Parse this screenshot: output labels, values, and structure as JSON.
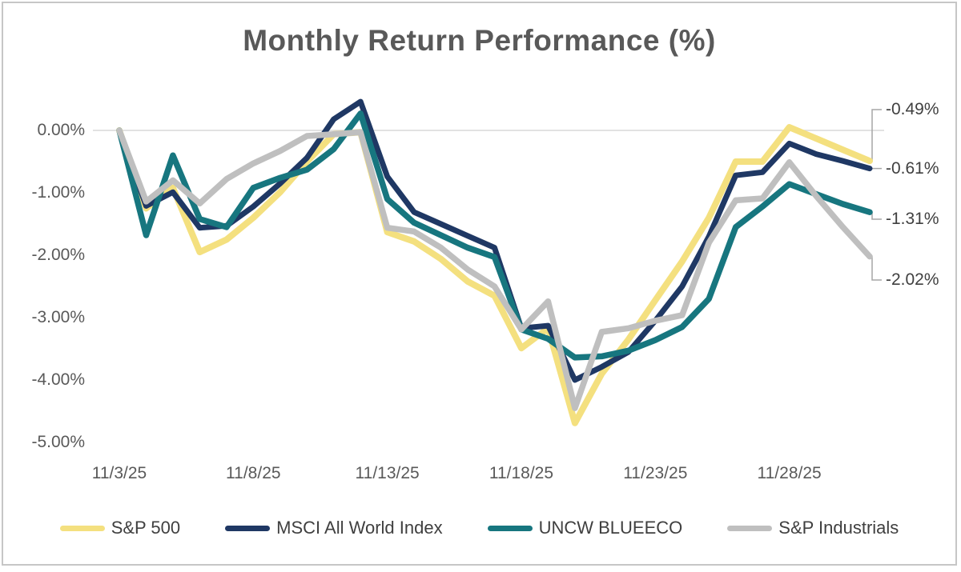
{
  "chart_data": {
    "type": "line",
    "title": "Monthly Return Performance (%)",
    "x": [
      "11/3/25",
      "11/4/25",
      "11/5/25",
      "11/6/25",
      "11/7/25",
      "11/8/25",
      "11/9/25",
      "11/10/25",
      "11/11/25",
      "11/12/25",
      "11/13/25",
      "11/14/25",
      "11/15/25",
      "11/16/25",
      "11/17/25",
      "11/18/25",
      "11/19/25",
      "11/20/25",
      "11/21/25",
      "11/22/25",
      "11/23/25",
      "11/24/25",
      "11/25/25",
      "11/26/25",
      "11/27/25",
      "11/28/25",
      "11/29/25",
      "11/30/25",
      "12/1/25"
    ],
    "x_tick_labels": [
      "11/3/25",
      "11/8/25",
      "11/13/25",
      "11/18/25",
      "11/23/25",
      "11/28/25"
    ],
    "x_tick_indices": [
      0,
      5,
      10,
      15,
      20,
      25
    ],
    "y_tick_labels": [
      "0.00%",
      "-1.00%",
      "-2.00%",
      "-3.00%",
      "-4.00%",
      "-5.00%"
    ],
    "y_tick_values": [
      0,
      -1,
      -2,
      -3,
      -4,
      -5
    ],
    "ylim": [
      -5.4,
      0.8
    ],
    "grid": "zero-line-only",
    "legend_position": "bottom",
    "series": [
      {
        "name": "S&P 500",
        "color": "#F4E07F",
        "values": [
          0,
          -1.25,
          -0.92,
          -1.95,
          -1.75,
          -1.4,
          -0.99,
          -0.5,
          -0.06,
          -0.03,
          -1.63,
          -1.78,
          -2.06,
          -2.42,
          -2.65,
          -3.49,
          -3.17,
          -4.69,
          -3.9,
          -3.35,
          -2.72,
          -2.1,
          -1.4,
          -0.5,
          -0.5,
          0.05,
          -0.13,
          -0.31,
          -0.49
        ]
      },
      {
        "name": "MSCI All World Index",
        "color": "#1F3864",
        "values": [
          0,
          -1.21,
          -0.99,
          -1.56,
          -1.53,
          -1.22,
          -0.85,
          -0.44,
          0.18,
          0.46,
          -0.74,
          -1.31,
          -1.5,
          -1.69,
          -1.88,
          -3.17,
          -3.13,
          -4.0,
          -3.79,
          -3.55,
          -3.05,
          -2.5,
          -1.7,
          -0.72,
          -0.67,
          -0.21,
          -0.38,
          -0.49,
          -0.61
        ]
      },
      {
        "name": "UNCW BLUEECO",
        "color": "#17767F",
        "values": [
          0,
          -1.68,
          -0.4,
          -1.42,
          -1.55,
          -0.92,
          -0.76,
          -0.63,
          -0.3,
          0.27,
          -1.1,
          -1.48,
          -1.68,
          -1.88,
          -2.03,
          -3.19,
          -3.34,
          -3.64,
          -3.62,
          -3.53,
          -3.36,
          -3.15,
          -2.7,
          -1.55,
          -1.22,
          -0.86,
          -1.02,
          -1.18,
          -1.31
        ]
      },
      {
        "name": "S&P Industrials",
        "color": "#BFBFBF",
        "values": [
          0,
          -1.14,
          -0.8,
          -1.17,
          -0.78,
          -0.53,
          -0.33,
          -0.09,
          -0.06,
          -0.03,
          -1.56,
          -1.62,
          -1.88,
          -2.23,
          -2.5,
          -3.19,
          -2.74,
          -4.45,
          -3.23,
          -3.17,
          -3.05,
          -2.96,
          -1.8,
          -1.12,
          -1.09,
          -0.51,
          -1.05,
          -1.55,
          -2.02
        ]
      }
    ],
    "end_labels": [
      {
        "series": "S&P 500",
        "text": "-0.49%"
      },
      {
        "series": "MSCI All World Index",
        "text": "-0.61%"
      },
      {
        "series": "UNCW BLUEECO",
        "text": "-1.31%"
      },
      {
        "series": "S&P Industrials",
        "text": "-2.02%"
      }
    ],
    "colors": {
      "title_text": "#595959",
      "axis_text": "#595959",
      "label_text": "#3f3f3f",
      "zero_gridline": "#d9d9d9",
      "leader_line": "#a6a6a6"
    }
  }
}
